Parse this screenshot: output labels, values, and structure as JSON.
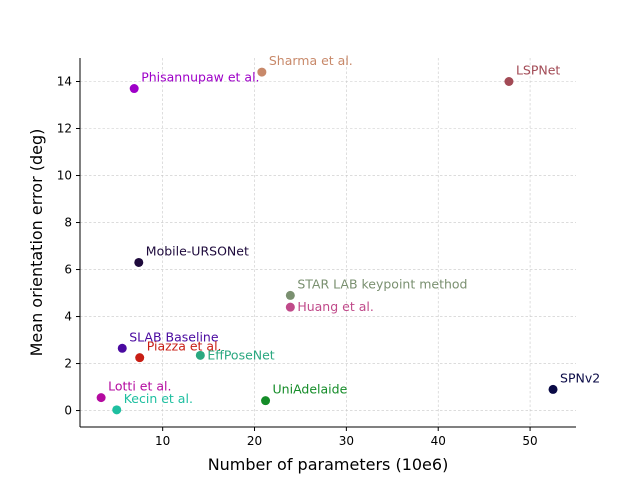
{
  "chart_data": {
    "type": "scatter",
    "title": "",
    "xlabel": "Number of parameters (10e6)",
    "ylabel": "Mean orientation error (deg)",
    "xlim": [
      1,
      55
    ],
    "ylim": [
      -0.7,
      15
    ],
    "xticks": [
      10,
      20,
      30,
      40,
      50
    ],
    "yticks": [
      0,
      2,
      4,
      6,
      8,
      10,
      12,
      14
    ],
    "grid": true,
    "points": [
      {
        "label": "Sharma et al.",
        "x": 20.8,
        "y": 14.4,
        "color": "#c8896a",
        "label_pos": "upper-right"
      },
      {
        "label": "LSPNet",
        "x": 47.7,
        "y": 14.0,
        "color": "#a24a55",
        "label_pos": "upper-right"
      },
      {
        "label": "Phisannupaw et al.",
        "x": 6.9,
        "y": 13.7,
        "color": "#9e00c8",
        "label_pos": "upper-right"
      },
      {
        "label": "Mobile-URSONet",
        "x": 7.4,
        "y": 6.3,
        "color": "#1e0a3c",
        "label_pos": "upper-right"
      },
      {
        "label": "STAR LAB keypoint method",
        "x": 23.9,
        "y": 4.9,
        "color": "#7a9070",
        "label_pos": "upper-right"
      },
      {
        "label": "Huang et al.",
        "x": 23.9,
        "y": 4.4,
        "color": "#c04a8a",
        "label_pos": "right"
      },
      {
        "label": "SLAB Baseline",
        "x": 5.6,
        "y": 2.65,
        "color": "#4a0aa0",
        "label_pos": "upper-right"
      },
      {
        "label": "Piazza et al.",
        "x": 7.5,
        "y": 2.25,
        "color": "#c81e14",
        "label_pos": "upper-right"
      },
      {
        "label": "EffPoseNet",
        "x": 14.1,
        "y": 2.35,
        "color": "#2aa880",
        "label_pos": "right"
      },
      {
        "label": "SPNv2",
        "x": 52.5,
        "y": 0.9,
        "color": "#0a0a46",
        "label_pos": "upper-right"
      },
      {
        "label": "Lotti et al.",
        "x": 3.3,
        "y": 0.55,
        "color": "#b40aa0",
        "label_pos": "upper-right"
      },
      {
        "label": "UniAdelaide",
        "x": 21.2,
        "y": 0.42,
        "color": "#148c28",
        "label_pos": "upper-right"
      },
      {
        "label": "Kecin et al.",
        "x": 5.0,
        "y": 0.03,
        "color": "#1ebfa0",
        "label_pos": "upper-right"
      }
    ]
  }
}
